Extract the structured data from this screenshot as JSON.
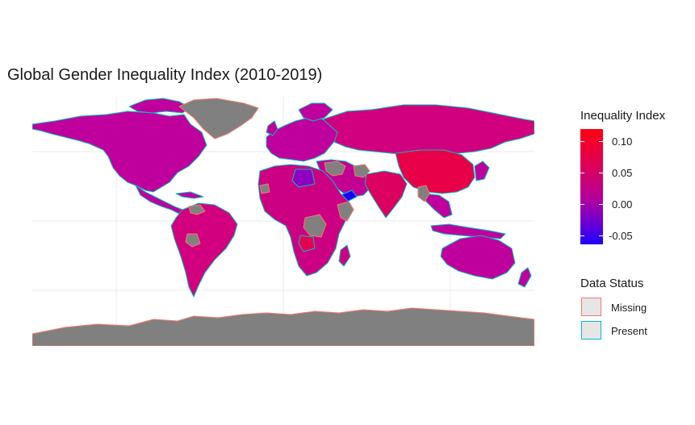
{
  "title": "Global Gender Inequality Index (2010-2019)",
  "legend_fill": {
    "title": "Inequality Index",
    "ticks": [
      "0.10",
      "0.05",
      "0.00",
      "-0.05"
    ],
    "tick_values": [
      0.1,
      0.05,
      0.0,
      -0.05
    ],
    "range": [
      -0.07,
      0.12
    ],
    "colors": {
      "high": "#ff0012",
      "mid": "#b5009a",
      "low": "#1a00ff"
    }
  },
  "legend_status": {
    "title": "Data Status",
    "items": [
      {
        "label": "Missing",
        "color": "#f8766d"
      },
      {
        "label": "Present",
        "color": "#00bfc4"
      }
    ]
  },
  "colors": {
    "missing_fill": "#808080",
    "present_fill": "#c8009a",
    "grid": "#ebebeb"
  }
}
